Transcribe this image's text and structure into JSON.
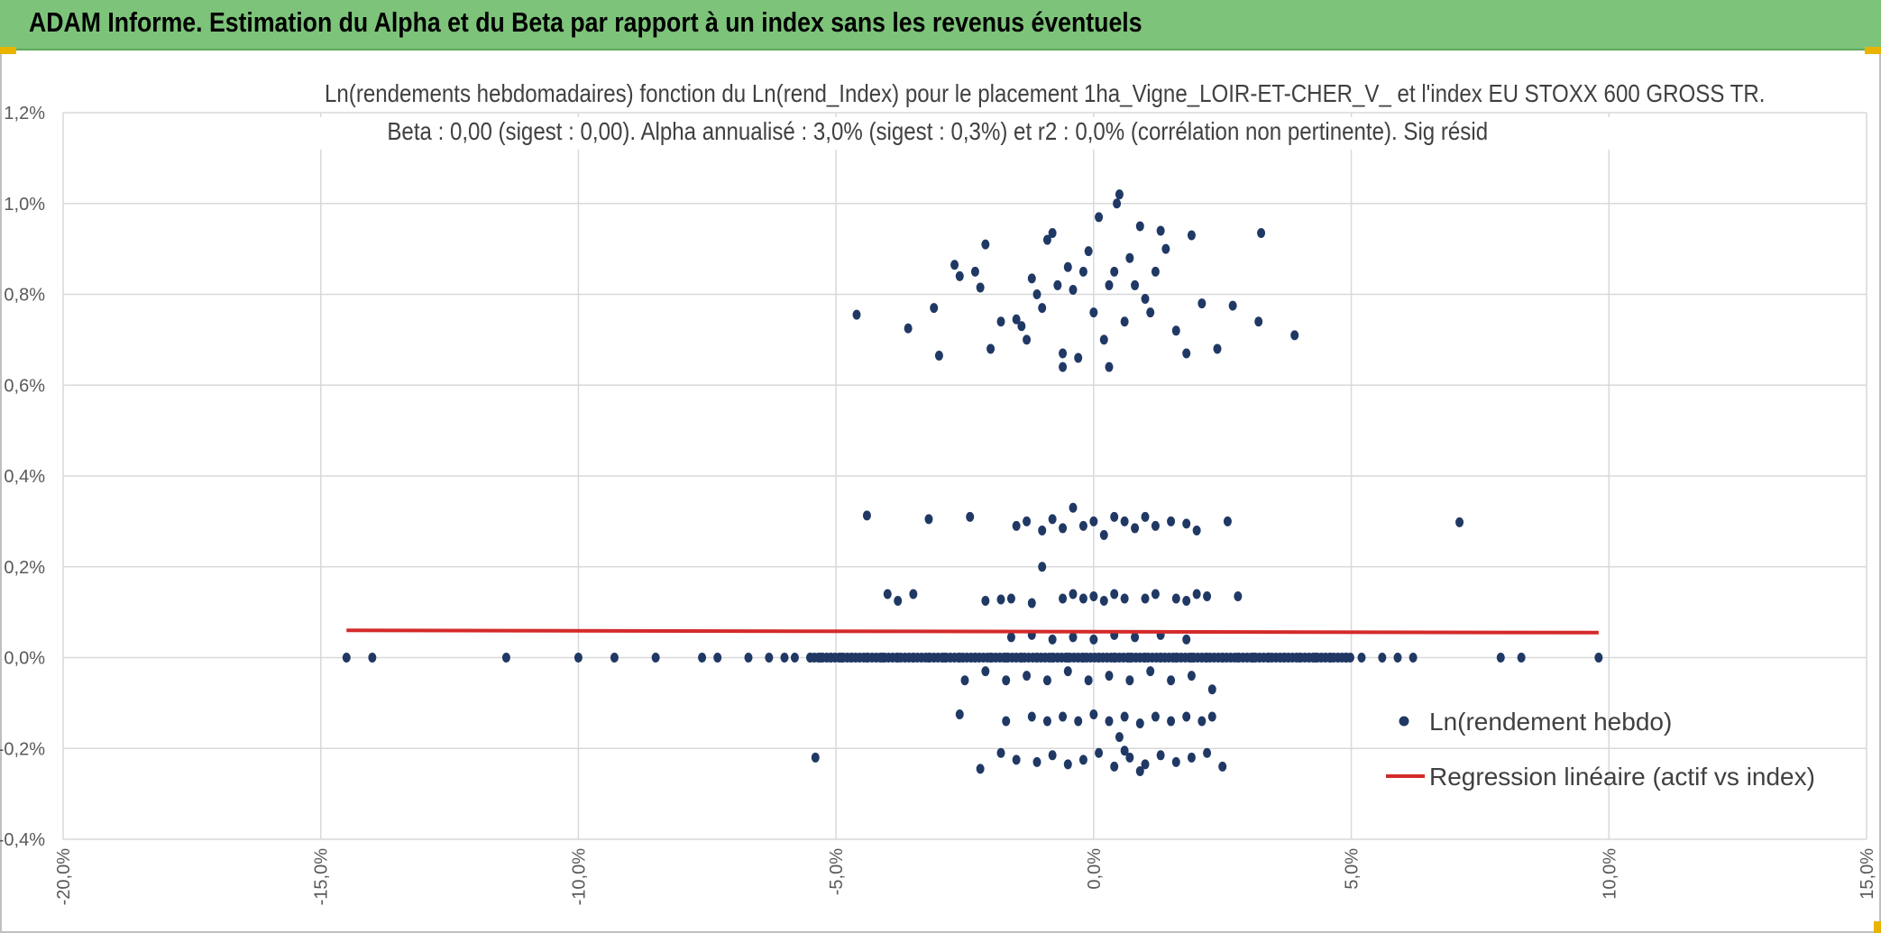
{
  "header": {
    "title": "ADAM Informe. Estimation du Alpha et du Beta par rapport à un index sans les revenus éventuels"
  },
  "colors": {
    "banner": "#7dc47a",
    "points": "#203864",
    "regression": "#d42a2a",
    "grid": "#d9d9d9"
  },
  "chart_data": {
    "type": "scatter",
    "title": "Ln(rendements hebdomadaires) fonction du Ln(rend_Index) pour le placement 1ha_Vigne_LOIR-ET-CHER_V_ et l'index EU STOXX 600 GROSS TR.",
    "subtitle": "Beta : 0,00 (sigest : 0,00). Alpha annualisé : 3,0% (sigest : 0,3%) et r2 : 0,0% (corrélation non pertinente). Sig résid",
    "xlabel": "",
    "ylabel": "",
    "xlim": [
      -20,
      15
    ],
    "ylim": [
      -0.4,
      1.2
    ],
    "x_ticks": [
      "-20,0%",
      "-15,0%",
      "-10,0%",
      "-5,0%",
      "0,0%",
      "5,0%",
      "10,0%",
      "15,0%"
    ],
    "y_ticks": [
      "-0,4%",
      "-0,2%",
      "0,0%",
      "0,2%",
      "0,4%",
      "0,6%",
      "0,8%",
      "1,0%",
      "1,2%"
    ],
    "grid": true,
    "legend_position": "bottom-right",
    "series": [
      {
        "name": "Ln(rendement hebdo)",
        "kind": "scatter",
        "points": [
          [
            -14.5,
            0
          ],
          [
            -14,
            0
          ],
          [
            -11.4,
            0
          ],
          [
            -10,
            0
          ],
          [
            -9.3,
            0
          ],
          [
            -8.5,
            0
          ],
          [
            -7.6,
            0
          ],
          [
            -7.3,
            0
          ],
          [
            -6.7,
            0
          ],
          [
            -6.3,
            0
          ],
          [
            -6,
            0
          ],
          [
            -5.8,
            0
          ],
          [
            -5.5,
            0
          ],
          [
            -5.3,
            0
          ],
          [
            -5.1,
            0
          ],
          [
            -4.9,
            0
          ],
          [
            -4.7,
            0
          ],
          [
            -4.4,
            0
          ],
          [
            -4.1,
            0
          ],
          [
            -3.8,
            0
          ],
          [
            -3.5,
            0
          ],
          [
            -3.2,
            0
          ],
          [
            -2.9,
            0
          ],
          [
            -2.6,
            0
          ],
          [
            -2.3,
            0
          ],
          [
            -2,
            0
          ],
          [
            -1.7,
            0
          ],
          [
            -1.4,
            0
          ],
          [
            -1.1,
            0
          ],
          [
            -0.8,
            0
          ],
          [
            -0.5,
            0
          ],
          [
            -0.2,
            0
          ],
          [
            0.1,
            0
          ],
          [
            0.4,
            0
          ],
          [
            0.7,
            0
          ],
          [
            1,
            0
          ],
          [
            1.3,
            0
          ],
          [
            1.6,
            0
          ],
          [
            1.9,
            0
          ],
          [
            2.2,
            0
          ],
          [
            2.5,
            0
          ],
          [
            2.8,
            0
          ],
          [
            3.1,
            0
          ],
          [
            3.4,
            0
          ],
          [
            3.7,
            0
          ],
          [
            4,
            0
          ],
          [
            4.3,
            0
          ],
          [
            4.6,
            0
          ],
          [
            4.9,
            0
          ],
          [
            5.2,
            0
          ],
          [
            5.6,
            0
          ],
          [
            5.9,
            0
          ],
          [
            6.2,
            0
          ],
          [
            7.9,
            0
          ],
          [
            8.3,
            0
          ],
          [
            9.8,
            0
          ],
          [
            -4.6,
            0.755
          ],
          [
            -3.6,
            0.725
          ],
          [
            -3.1,
            0.77
          ],
          [
            -3,
            0.665
          ],
          [
            -2.7,
            0.865
          ],
          [
            -2.6,
            0.84
          ],
          [
            -2.3,
            0.85
          ],
          [
            -2.2,
            0.815
          ],
          [
            -2.1,
            0.91
          ],
          [
            -2,
            0.68
          ],
          [
            -1.8,
            0.74
          ],
          [
            -1.5,
            0.745
          ],
          [
            -1.4,
            0.73
          ],
          [
            -1.3,
            0.7
          ],
          [
            -1.2,
            0.835
          ],
          [
            -1.1,
            0.8
          ],
          [
            -1,
            0.77
          ],
          [
            -0.9,
            0.92
          ],
          [
            -0.8,
            0.935
          ],
          [
            -0.7,
            0.82
          ],
          [
            -0.6,
            0.67
          ],
          [
            -0.5,
            0.86
          ],
          [
            -0.4,
            0.81
          ],
          [
            -0.3,
            0.66
          ],
          [
            -0.2,
            0.85
          ],
          [
            -0.1,
            0.895
          ],
          [
            0,
            0.76
          ],
          [
            0.1,
            0.97
          ],
          [
            0.2,
            0.7
          ],
          [
            0.3,
            0.82
          ],
          [
            0.4,
            0.85
          ],
          [
            0.45,
            1.0
          ],
          [
            0.5,
            1.02
          ],
          [
            0.6,
            0.74
          ],
          [
            0.7,
            0.88
          ],
          [
            0.8,
            0.82
          ],
          [
            0.9,
            0.95
          ],
          [
            1,
            0.79
          ],
          [
            1.1,
            0.76
          ],
          [
            1.2,
            0.85
          ],
          [
            1.3,
            0.94
          ],
          [
            1.4,
            0.9
          ],
          [
            1.6,
            0.72
          ],
          [
            1.8,
            0.67
          ],
          [
            1.9,
            0.93
          ],
          [
            2.1,
            0.78
          ],
          [
            2.4,
            0.68
          ],
          [
            2.7,
            0.775
          ],
          [
            3.2,
            0.74
          ],
          [
            3.25,
            0.935
          ],
          [
            3.9,
            0.71
          ],
          [
            0.3,
            0.64
          ],
          [
            -0.6,
            0.64
          ],
          [
            -4.4,
            0.313
          ],
          [
            -3.2,
            0.305
          ],
          [
            -2.4,
            0.31
          ],
          [
            -1.5,
            0.29
          ],
          [
            -1.3,
            0.3
          ],
          [
            -1,
            0.28
          ],
          [
            -0.8,
            0.305
          ],
          [
            -0.6,
            0.285
          ],
          [
            -0.4,
            0.33
          ],
          [
            -0.2,
            0.29
          ],
          [
            0,
            0.3
          ],
          [
            0.2,
            0.27
          ],
          [
            0.4,
            0.31
          ],
          [
            0.6,
            0.3
          ],
          [
            0.8,
            0.285
          ],
          [
            1,
            0.31
          ],
          [
            1.2,
            0.29
          ],
          [
            1.5,
            0.3
          ],
          [
            1.8,
            0.295
          ],
          [
            2,
            0.28
          ],
          [
            2.6,
            0.3
          ],
          [
            7.1,
            0.298
          ],
          [
            -4,
            0.14
          ],
          [
            -3.8,
            0.125
          ],
          [
            -3.5,
            0.14
          ],
          [
            -2.1,
            0.125
          ],
          [
            -1.8,
            0.128
          ],
          [
            -1.6,
            0.13
          ],
          [
            -1.2,
            0.12
          ],
          [
            -0.6,
            0.13
          ],
          [
            -0.4,
            0.14
          ],
          [
            -0.2,
            0.13
          ],
          [
            0,
            0.135
          ],
          [
            0.2,
            0.125
          ],
          [
            0.4,
            0.14
          ],
          [
            0.6,
            0.13
          ],
          [
            1,
            0.13
          ],
          [
            1.2,
            0.14
          ],
          [
            1.6,
            0.13
          ],
          [
            1.8,
            0.125
          ],
          [
            2,
            0.14
          ],
          [
            2.2,
            0.135
          ],
          [
            2.8,
            0.135
          ],
          [
            -1,
            0.2
          ],
          [
            -1.6,
            0.045
          ],
          [
            -1.2,
            0.05
          ],
          [
            -0.8,
            0.04
          ],
          [
            -0.4,
            0.045
          ],
          [
            0,
            0.04
          ],
          [
            0.4,
            0.05
          ],
          [
            0.8,
            0.045
          ],
          [
            1.3,
            0.05
          ],
          [
            1.8,
            0.04
          ],
          [
            -2.5,
            -0.05
          ],
          [
            -2.1,
            -0.03
          ],
          [
            -1.7,
            -0.05
          ],
          [
            -1.3,
            -0.04
          ],
          [
            -0.9,
            -0.05
          ],
          [
            -0.5,
            -0.03
          ],
          [
            -0.1,
            -0.05
          ],
          [
            0.3,
            -0.04
          ],
          [
            0.7,
            -0.05
          ],
          [
            1.1,
            -0.03
          ],
          [
            1.5,
            -0.05
          ],
          [
            1.9,
            -0.04
          ],
          [
            2.3,
            -0.07
          ],
          [
            -2.6,
            -0.125
          ],
          [
            -1.7,
            -0.14
          ],
          [
            -1.2,
            -0.13
          ],
          [
            -0.9,
            -0.14
          ],
          [
            -0.6,
            -0.13
          ],
          [
            -0.3,
            -0.14
          ],
          [
            0,
            -0.125
          ],
          [
            0.3,
            -0.14
          ],
          [
            0.6,
            -0.13
          ],
          [
            0.9,
            -0.145
          ],
          [
            1.2,
            -0.13
          ],
          [
            1.5,
            -0.14
          ],
          [
            1.8,
            -0.13
          ],
          [
            2.1,
            -0.14
          ],
          [
            2.3,
            -0.13
          ],
          [
            0.5,
            -0.175
          ],
          [
            -5.4,
            -0.22
          ],
          [
            -2.2,
            -0.245
          ],
          [
            -1.8,
            -0.21
          ],
          [
            -1.5,
            -0.225
          ],
          [
            -1.1,
            -0.23
          ],
          [
            -0.8,
            -0.215
          ],
          [
            -0.5,
            -0.235
          ],
          [
            -0.2,
            -0.225
          ],
          [
            0.1,
            -0.21
          ],
          [
            0.4,
            -0.24
          ],
          [
            0.7,
            -0.22
          ],
          [
            1,
            -0.235
          ],
          [
            1.3,
            -0.215
          ],
          [
            1.6,
            -0.23
          ],
          [
            1.9,
            -0.22
          ],
          [
            2.2,
            -0.21
          ],
          [
            2.5,
            -0.24
          ],
          [
            0.9,
            -0.25
          ],
          [
            0.6,
            -0.205
          ]
        ]
      },
      {
        "name": "Regression linéaire (actif vs index)",
        "kind": "line",
        "points": [
          [
            -14.5,
            0.06
          ],
          [
            9.8,
            0.055
          ]
        ]
      }
    ]
  }
}
